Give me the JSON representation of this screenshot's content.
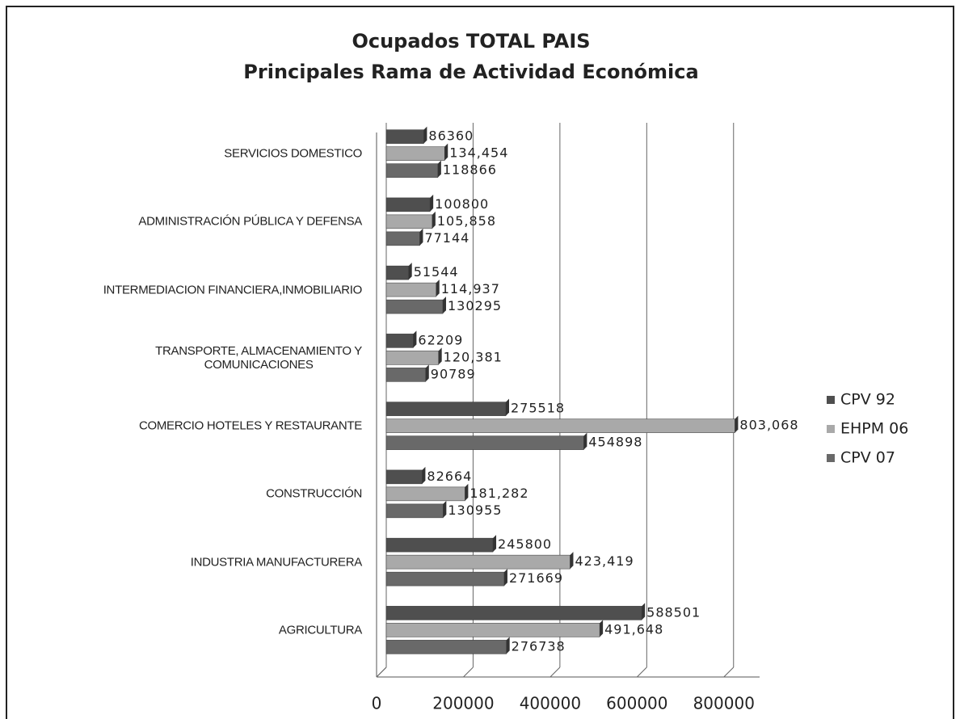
{
  "chart_data": {
    "type": "hbar",
    "title": "Ocupados TOTAL PAIS",
    "subtitle": "Principales Rama de Actividad Económica",
    "categories": [
      "AGRICULTURA",
      "INDUSTRIA MANUFACTURERA",
      "CONSTRUCCIÓN",
      "COMERCIO HOTELES Y RESTAURANTE",
      "TRANSPORTE, ALMACENAMIENTO Y\nCOMUNICACIONES",
      "INTERMEDIACION FINANCIERA,INMOBILIARIO",
      "ADMINISTRACIÓN PÚBLICA Y DEFENSA",
      "SERVICIOS DOMESTICO"
    ],
    "series": [
      {
        "name": "CPV 92",
        "color": "#4f4f4f",
        "values": [
          588501,
          245800,
          82664,
          275518,
          62209,
          51544,
          100800,
          86360
        ]
      },
      {
        "name": "EHPM 06",
        "color": "#a9a9a9",
        "values": [
          491648,
          423419,
          181282,
          803068,
          120381,
          114937,
          105858,
          134454
        ],
        "value_labels": [
          "491,648",
          "423,419",
          "181,282",
          "803,068",
          "120,381",
          "114,937",
          "105,858",
          "134,454"
        ]
      },
      {
        "name": "CPV 07",
        "color": "#696969",
        "values": [
          276738,
          271669,
          130955,
          454898,
          90789,
          130295,
          77144,
          118866
        ]
      }
    ],
    "xlim": [
      0,
      860000
    ],
    "xticks": [
      0,
      200000,
      400000,
      600000,
      800000
    ],
    "grid": true,
    "legend": "right"
  }
}
